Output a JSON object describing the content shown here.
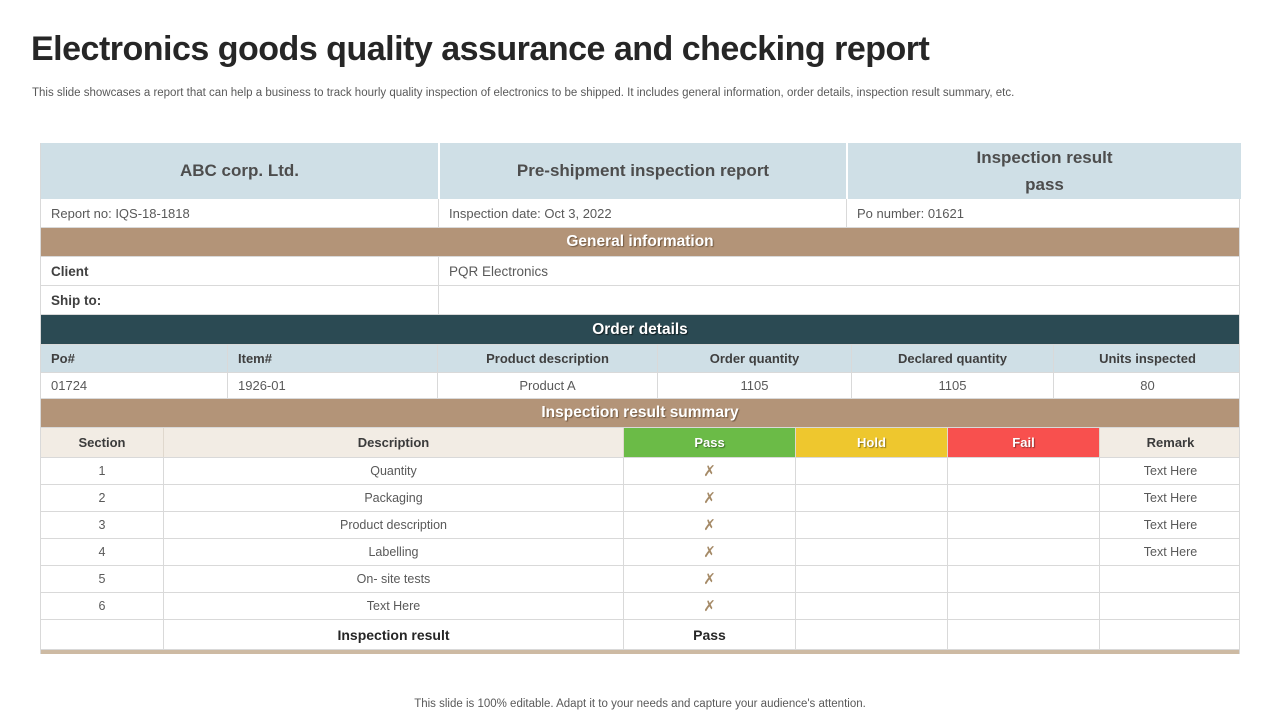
{
  "slide": {
    "title": "Electronics goods quality assurance and checking report",
    "subtitle": "This slide showcases a report that can help a business to track hourly quality inspection of electronics to be shipped. It includes general information, order details, inspection result summary, etc.",
    "footer": "This slide is 100% editable. Adapt it to your needs and capture your audience's attention."
  },
  "colors": {
    "header_blue": "#cfdfe6",
    "band_tan": "#b39478",
    "band_teal": "#2b4a53",
    "summary_header_beige": "#f2ece4",
    "pass_green": "#6bbb47",
    "hold_yellow": "#eec72e",
    "fail_red": "#f8504e",
    "mark_tan": "#a58a67",
    "bottom_border_tan": "#cdbaa3"
  },
  "report_header": {
    "company": "ABC corp. Ltd.",
    "report_title": "Pre-shipment inspection report",
    "result_label": "Inspection result",
    "result_value": "pass",
    "report_no": "Report no: IQS-18-1818",
    "inspection_date": "Inspection date: Oct 3, 2022",
    "po_number": "Po number: 01621"
  },
  "general_information": {
    "band_title": "General information",
    "rows": [
      {
        "label": "Client",
        "value": "PQR Electronics"
      },
      {
        "label": "Ship to:",
        "value": ""
      }
    ]
  },
  "order_details": {
    "band_title": "Order details",
    "columns": [
      "Po#",
      "Item#",
      "Product description",
      "Order quantity",
      "Declared quantity",
      "Units inspected"
    ],
    "row": [
      "01724",
      "1926-01",
      "Product A",
      "1105",
      "1105",
      "80"
    ]
  },
  "inspection_summary": {
    "band_title": "Inspection result summary",
    "columns": [
      "Section",
      "Description",
      "Pass",
      "Hold",
      "Fail",
      "Remark"
    ],
    "rows": [
      {
        "section": "1",
        "description": "Quantity",
        "pass": "✗",
        "hold": "",
        "fail": "",
        "remark": "Text Here"
      },
      {
        "section": "2",
        "description": "Packaging",
        "pass": "✗",
        "hold": "",
        "fail": "",
        "remark": "Text Here"
      },
      {
        "section": "3",
        "description": "Product description",
        "pass": "✗",
        "hold": "",
        "fail": "",
        "remark": "Text Here"
      },
      {
        "section": "4",
        "description": "Labelling",
        "pass": "✗",
        "hold": "",
        "fail": "",
        "remark": "Text Here"
      },
      {
        "section": "5",
        "description": "On- site tests",
        "pass": "✗",
        "hold": "",
        "fail": "",
        "remark": ""
      },
      {
        "section": "6",
        "description": "Text Here",
        "pass": "✗",
        "hold": "",
        "fail": "",
        "remark": ""
      }
    ],
    "result_row": {
      "label": "Inspection result",
      "pass": "Pass",
      "hold": "",
      "fail": "",
      "remark": ""
    }
  }
}
